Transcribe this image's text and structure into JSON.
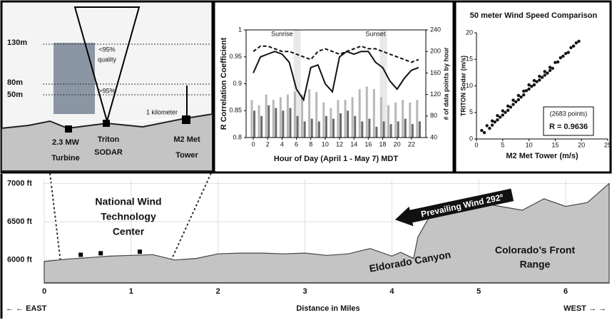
{
  "schematic": {
    "heights": [
      "130m",
      "80m",
      "50m"
    ],
    "low_quality": [
      "<95%",
      "quality"
    ],
    "high_quality": ">95%",
    "distance": "1 kilometer",
    "sites": [
      [
        "2.3 MW",
        "Turbine"
      ],
      [
        "Triton",
        "SODAR"
      ],
      [
        "M2 Met",
        "Tower"
      ]
    ]
  },
  "chart_data": [
    {
      "type": "combo",
      "xlabel": "Hour of Day (April 1 - May 7) MDT",
      "ylabel": "R  Correlation Coefficient",
      "y2label": "# of data points by hour",
      "annotations": [
        "Sunrise",
        "Sunset"
      ],
      "x": [
        0,
        1,
        2,
        3,
        4,
        5,
        6,
        7,
        8,
        9,
        10,
        11,
        12,
        13,
        14,
        15,
        16,
        17,
        18,
        19,
        20,
        21,
        22,
        23
      ],
      "xlim": [
        -1,
        24
      ],
      "xticks": [
        0,
        2,
        4,
        6,
        8,
        10,
        12,
        14,
        16,
        18,
        20,
        22
      ],
      "ylim": [
        0.8,
        1
      ],
      "yticks": [
        0.8,
        0.85,
        0.9,
        0.95,
        1
      ],
      "y2lim": [
        40,
        240
      ],
      "y2ticks": [
        40,
        80,
        120,
        160,
        200,
        240
      ],
      "series": [
        {
          "type": "bar",
          "axis": "y2",
          "color": "#b8b8b8",
          "values": [
            110,
            100,
            120,
            110,
            115,
            120,
            125,
            120,
            130,
            125,
            105,
            95,
            110,
            110,
            115,
            130,
            135,
            130,
            115,
            100,
            105,
            110,
            105,
            110
          ]
        },
        {
          "type": "bar",
          "axis": "y2",
          "color": "#6a6a6a",
          "values": [
            90,
            80,
            100,
            95,
            90,
            95,
            80,
            70,
            75,
            70,
            80,
            75,
            85,
            90,
            80,
            70,
            75,
            60,
            70,
            65,
            70,
            75,
            65,
            70
          ]
        },
        {
          "type": "line",
          "color": "#111",
          "dashed": true,
          "values": [
            0.96,
            0.97,
            0.97,
            0.965,
            0.96,
            0.96,
            0.955,
            0.95,
            0.945,
            0.96,
            0.965,
            0.96,
            0.955,
            0.96,
            0.965,
            0.97,
            0.965,
            0.965,
            0.96,
            0.955,
            0.95,
            0.945,
            0.94,
            0.945
          ]
        },
        {
          "type": "line",
          "color": "#111",
          "values": [
            0.92,
            0.95,
            0.955,
            0.96,
            0.955,
            0.94,
            0.89,
            0.87,
            0.93,
            0.935,
            0.9,
            0.885,
            0.95,
            0.96,
            0.955,
            0.96,
            0.96,
            0.94,
            0.93,
            0.905,
            0.89,
            0.91,
            0.925,
            0.93
          ]
        }
      ]
    },
    {
      "type": "scatter",
      "title": "50 meter Wind Speed Comparison",
      "xlabel": "M2 Met Tower (m/s)",
      "ylabel": "TRITON Sodar (m/s)",
      "annotations": [
        "(2683 points)",
        "R = 0.9636"
      ],
      "xlim": [
        0,
        25
      ],
      "xticks": [
        0,
        5,
        10,
        15,
        20,
        25
      ],
      "ylim": [
        0,
        20
      ],
      "yticks": [
        0,
        5,
        10,
        15,
        20
      ],
      "color": "#111",
      "x": [
        1,
        1.5,
        2,
        2.5,
        3,
        3,
        3.5,
        4,
        4,
        4.5,
        5,
        5,
        5.5,
        6,
        6,
        6.5,
        7,
        7,
        7.5,
        8,
        8,
        8.5,
        9,
        9,
        9.5,
        10,
        10,
        10.5,
        11,
        11,
        11.5,
        12,
        12,
        12.5,
        13,
        13,
        13.5,
        14,
        14,
        14.5,
        15,
        15.5,
        16,
        16.5,
        17,
        17.5,
        18,
        18.5,
        19,
        19.5
      ],
      "values": [
        1.6,
        1.2,
        2.5,
        2.0,
        3.4,
        2.6,
        3.2,
        4.4,
        3.6,
        4.1,
        5.3,
        4.5,
        5.0,
        6.2,
        5.4,
        6.0,
        7.3,
        6.5,
        7.0,
        8.2,
        7.4,
        7.9,
        9.0,
        8.3,
        9.1,
        10.2,
        9.4,
        9.9,
        11.0,
        10.2,
        10.8,
        11.8,
        11.1,
        11.6,
        12.7,
        12.0,
        12.4,
        13.5,
        12.9,
        13.3,
        14.4,
        14.5,
        15.3,
        15.6,
        16.1,
        16.3,
        17.2,
        17.5,
        18.1,
        18.4
      ]
    },
    {
      "type": "area",
      "xlabel": "Distance in Miles",
      "east": "← ← EAST",
      "west": "WEST → →",
      "annotations": [
        [
          "National Wind",
          "Technology",
          "Center"
        ],
        "Prevailing Wind 292º",
        "Eldorado Canyon",
        [
          "Colorado’s Front",
          "Range"
        ]
      ],
      "color": "#c4c4c4",
      "x": [
        0,
        0.25,
        0.5,
        0.75,
        1,
        1.25,
        1.5,
        1.75,
        2,
        2.25,
        2.5,
        2.75,
        3,
        3.25,
        3.5,
        3.75,
        4,
        4.1,
        4.25,
        4.3,
        4.4,
        4.5,
        4.75,
        5,
        5.25,
        5.5,
        5.75,
        6,
        6.25,
        6.5
      ],
      "values": [
        5980,
        6010,
        6030,
        6050,
        6060,
        6070,
        6000,
        6020,
        6080,
        6090,
        6090,
        6080,
        6090,
        6060,
        6080,
        6150,
        6050,
        6100,
        6020,
        6300,
        6500,
        6700,
        6650,
        6750,
        6700,
        6650,
        6800,
        6700,
        6750,
        7000
      ],
      "xlim": [
        0,
        6.5
      ],
      "xticks": [
        0,
        1,
        2,
        3,
        4,
        5,
        6
      ],
      "ylim": [
        5700,
        7050
      ],
      "yticks": [
        {
          "value": 6000,
          "label": "6000 ft"
        },
        {
          "value": 6500,
          "label": "6500 ft"
        },
        {
          "value": 7000,
          "label": "7000 ft"
        }
      ]
    }
  ]
}
